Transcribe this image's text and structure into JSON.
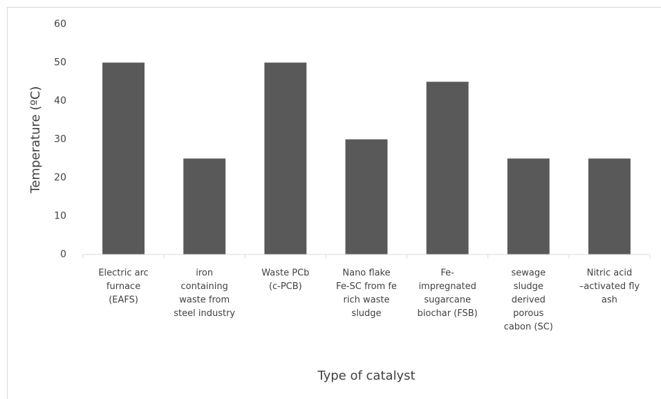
{
  "chart_data": {
    "type": "bar",
    "categories": [
      [
        "Electric arc",
        "furnace",
        "(EAFS)"
      ],
      [
        "iron",
        "containing",
        "waste from",
        "steel industry"
      ],
      [
        "Waste PCb",
        "(c-PCB)"
      ],
      [
        "Nano flake",
        "Fe-SC from fe",
        "rich waste",
        "sludge"
      ],
      [
        "Fe-",
        "impregnated",
        "sugarcane",
        "biochar (FSB)"
      ],
      [
        "sewage",
        "sludge",
        "derived",
        "porous",
        "cabon (SC)"
      ],
      [
        "Nitric acid",
        "–activated fly",
        "ash"
      ]
    ],
    "values": [
      50,
      25,
      50,
      30,
      45,
      25,
      25
    ],
    "color": "#595959",
    "ylim": [
      0,
      60
    ],
    "yticks": [
      0,
      10,
      20,
      30,
      40,
      50,
      60
    ],
    "grid": false,
    "ylabel": "Temperature (ºC)",
    "xlabel": "Type of catalyst"
  }
}
